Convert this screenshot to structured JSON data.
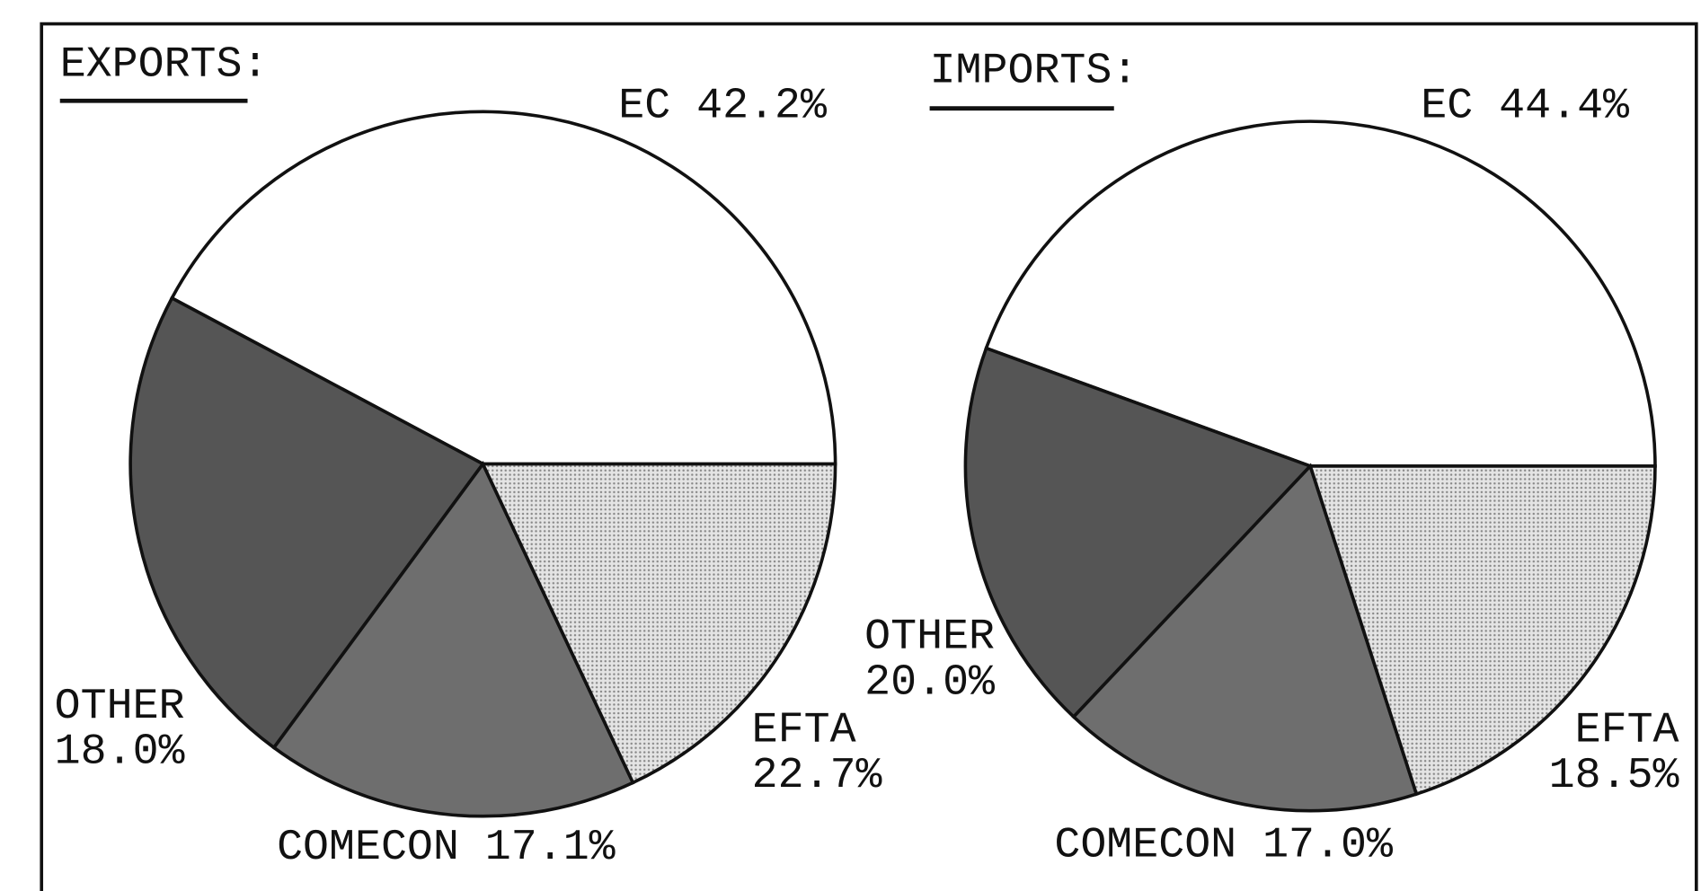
{
  "chart_data": [
    {
      "type": "pie",
      "title": "EXPORTS:",
      "categories": [
        "EC",
        "EFTA",
        "COMECON",
        "OTHER"
      ],
      "values": [
        42.2,
        22.7,
        17.1,
        18.0
      ],
      "value_labels": [
        "42.2%",
        "22.7%",
        "17.1%",
        "18.0%"
      ],
      "colors": [
        "#ffffff",
        "#555555",
        "#6e6e6e",
        "#cfcfcf"
      ]
    },
    {
      "type": "pie",
      "title": "IMPORTS:",
      "categories": [
        "EC",
        "EFTA",
        "COMECON",
        "OTHER"
      ],
      "values": [
        44.4,
        18.5,
        17.0,
        20.0
      ],
      "value_labels": [
        "44.4%",
        "18.5%",
        "17.0%",
        "20.0%"
      ],
      "colors": [
        "#ffffff",
        "#555555",
        "#6e6e6e",
        "#cfcfcf"
      ]
    }
  ]
}
